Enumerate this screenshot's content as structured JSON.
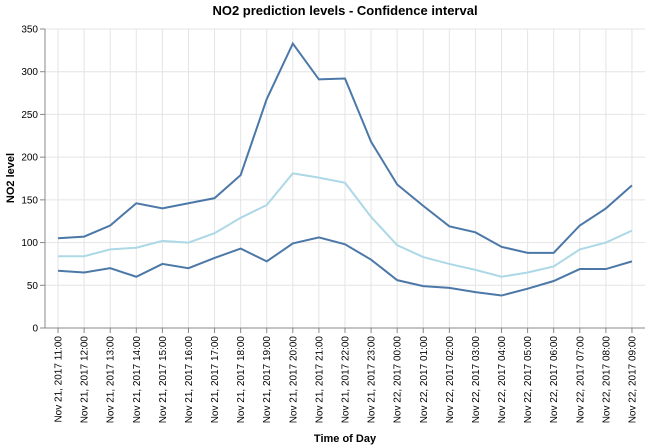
{
  "chart_data": {
    "type": "line",
    "title": "NO2 prediction levels - Confidence interval",
    "x_label": "Time of Day",
    "y_label": "NO2 level",
    "categories": [
      "Nov 21, 2017 11:00",
      "Nov 21, 2017 12:00",
      "Nov 21, 2017 13:00",
      "Nov 21, 2017 14:00",
      "Nov 21, 2017 15:00",
      "Nov 21, 2017 16:00",
      "Nov 21, 2017 17:00",
      "Nov 21, 2017 18:00",
      "Nov 21, 2017 19:00",
      "Nov 21, 2017 20:00",
      "Nov 21, 2017 21:00",
      "Nov 21, 2017 22:00",
      "Nov 21, 2017 23:00",
      "Nov 22, 2017 00:00",
      "Nov 22, 2017 01:00",
      "Nov 22, 2017 02:00",
      "Nov 22, 2017 03:00",
      "Nov 22, 2017 04:00",
      "Nov 22, 2017 05:00",
      "Nov 22, 2017 06:00",
      "Nov 22, 2017 07:00",
      "Nov 22, 2017 08:00",
      "Nov 22, 2017 09:00"
    ],
    "series": [
      {
        "color": "#4c78a8",
        "values": [
          105,
          107,
          120,
          146,
          140,
          146,
          152,
          179,
          268,
          333,
          291,
          292,
          218,
          168,
          143,
          119,
          112,
          95,
          88,
          88,
          120,
          140,
          167
        ]
      },
      {
        "color": "#add8e6",
        "values": [
          84,
          84,
          92,
          94,
          102,
          100,
          111,
          129,
          144,
          181,
          176,
          170,
          130,
          97,
          83,
          75,
          68,
          60,
          65,
          72,
          92,
          100,
          114
        ]
      },
      {
        "color": "#4c78a8",
        "values": [
          67,
          65,
          70,
          60,
          75,
          70,
          82,
          93,
          78,
          99,
          106,
          98,
          80,
          56,
          49,
          47,
          42,
          38,
          46,
          55,
          69,
          69,
          78
        ]
      }
    ],
    "ylim": [
      0,
      350
    ],
    "yticks": [
      0,
      50,
      100,
      150,
      200,
      250,
      300,
      350
    ],
    "grid": true
  }
}
